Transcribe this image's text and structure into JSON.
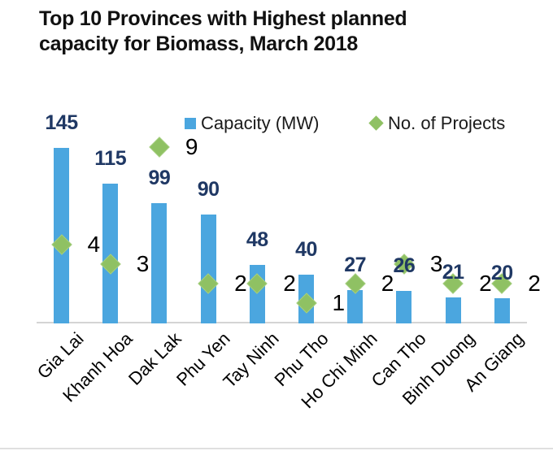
{
  "title_lines": [
    "Top 10 Provinces with Highest planned",
    "capacity for Biomass, March 2018"
  ],
  "legend": {
    "capacity_label": "Capacity (MW)",
    "projects_label": "No. of Projects"
  },
  "colors": {
    "bar": "#4BA6DF",
    "diamond": "#8FC163",
    "diamond_border": "#A6CF80",
    "capacity_label": "#1F3864",
    "projects_label": "#000000",
    "title": "#111111",
    "axis_line": "#D4D4D4"
  },
  "chart_data": {
    "type": "bar",
    "title": "Top 10 Provinces with Highest planned capacity for Biomass, March 2018",
    "categories": [
      "Gia Lai",
      "Khanh Hoa",
      "Dak Lak",
      "Phu Yen",
      "Tay Ninh",
      "Phu Tho",
      "Ho Chi Minh",
      "Can Tho",
      "Binh Duong",
      "An Giang"
    ],
    "series": [
      {
        "name": "Capacity (MW)",
        "type": "bar",
        "color": "#4BA6DF",
        "values": [
          145,
          115,
          99,
          90,
          48,
          40,
          27,
          26,
          21,
          20
        ]
      },
      {
        "name": "No. of Projects",
        "type": "point-diamond",
        "color": "#8FC163",
        "values": [
          4,
          3,
          9,
          2,
          2,
          1,
          2,
          3,
          2,
          2
        ]
      }
    ],
    "xlabel": "",
    "ylabel": "",
    "legend_position": "top",
    "grid": false,
    "data_labels": true,
    "axes": {
      "y_axis_visible": false,
      "x_axis_line_visible": true,
      "x_tick_rotation_deg": 45
    }
  }
}
